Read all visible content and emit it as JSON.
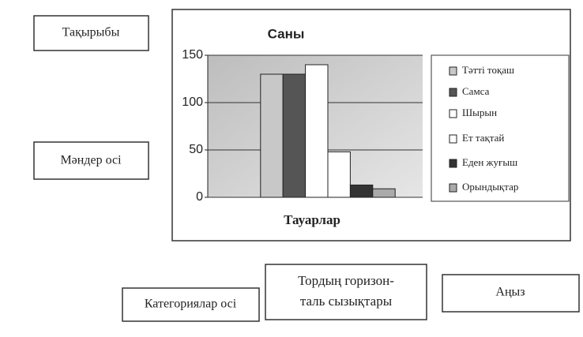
{
  "chart_data": {
    "type": "bar",
    "title": "Саны",
    "x_label": "Тауарлар",
    "categories": [
      null
    ],
    "series": [
      {
        "name": "Тәтті тоқаш",
        "color": "#c8c8c8",
        "values": [
          130
        ]
      },
      {
        "name": "Самса",
        "color": "#555555",
        "values": [
          130
        ]
      },
      {
        "name": "Шырын",
        "color": "#ffffff",
        "values": [
          140
        ]
      },
      {
        "name": "Ет тақтай",
        "color": "#ffffff",
        "values": [
          48
        ]
      },
      {
        "name": "Еден жуғыш",
        "color": "#333333",
        "values": [
          13
        ]
      },
      {
        "name": "Орындықтар",
        "color": "#aaaaaa",
        "values": [
          9
        ]
      }
    ],
    "ylim": [
      0,
      150
    ],
    "yticks": [
      0,
      50,
      100,
      150
    ],
    "grid": true,
    "legend": "right",
    "annotations": {
      "title_callout": "Тақырыбы",
      "value_axis_callout": "Мәндер осі",
      "category_axis_callout": "Категориялар осі",
      "gridlines_callout": [
        "Тордың горизон-",
        "таль сызықтары"
      ],
      "legend_callout": "Аңыз"
    }
  }
}
